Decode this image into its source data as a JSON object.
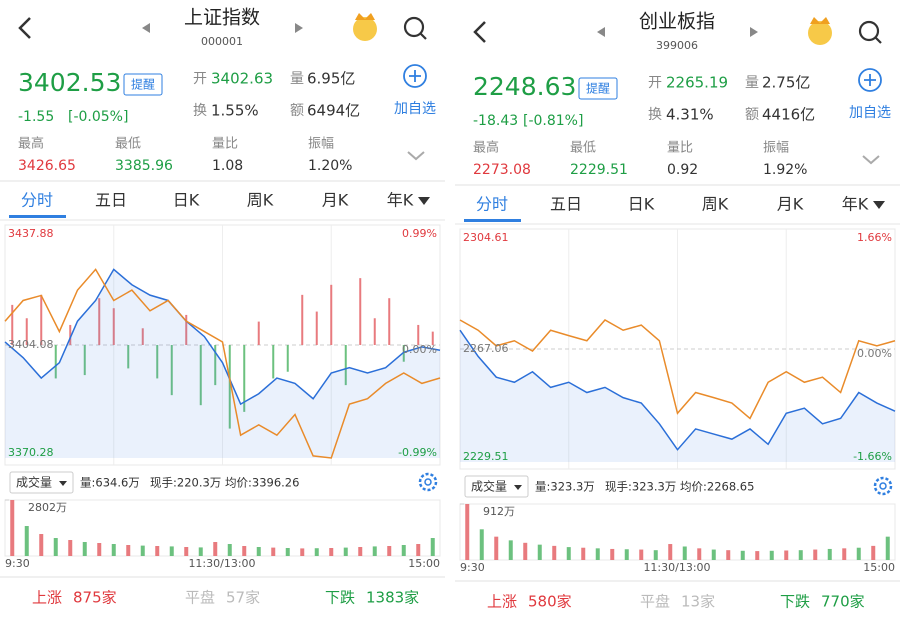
{
  "panels": [
    {
      "title": "上证指数",
      "code": "000001",
      "price": "3402.53",
      "alert_btn": "提醒",
      "change": "-1.55",
      "change_pct": "[-0.05%]",
      "open_label": "开",
      "open": "3402.63",
      "vol_label": "量",
      "vol": "6.95亿",
      "turnover_label": "换",
      "turnover": "1.55%",
      "amount_label": "额",
      "amount": "6494亿",
      "add_label": "加自选",
      "stats": [
        {
          "label": "最高",
          "value": "3426.65"
        },
        {
          "label": "最低",
          "value": "3385.96"
        },
        {
          "label": "量比",
          "value": "1.08"
        },
        {
          "label": "振幅",
          "value": "1.20%"
        }
      ],
      "tabs": [
        "分时",
        "五日",
        "日K",
        "周K",
        "月K",
        "年K"
      ],
      "chart": {
        "ylim": [
          3370.28,
          3437.88
        ],
        "prev_close": 3404.08,
        "top_pct": "0.99%",
        "mid_pct": "0.00%",
        "bottom_pct": "-0.99%",
        "price_line": [
          3405.0,
          3400.3,
          3394.2,
          3398.8,
          3411.2,
          3417.4,
          3426.7,
          3422.1,
          3419.0,
          3417.4,
          3411.2,
          3406.6,
          3398.8,
          3386.4,
          3389.5,
          3394.2,
          3392.6,
          3388.0,
          3395.7,
          3397.3,
          3395.7,
          3397.3,
          3401.9,
          3403.5,
          3402.5
        ],
        "orange_line": [
          3411.2,
          3417.4,
          3418.9,
          3408.1,
          3420.5,
          3426.7,
          3417.4,
          3420.5,
          3414.3,
          3417.4,
          3411.2,
          3408.1,
          3405.0,
          3377.1,
          3380.2,
          3377.1,
          3383.3,
          3370.9,
          3370.3,
          3386.4,
          3388.0,
          3392.6,
          3395.7,
          3392.6,
          3394.2
        ],
        "bars": [
          12,
          8,
          15,
          -10,
          6,
          -9,
          14,
          11,
          -7,
          5,
          -10,
          -15,
          9,
          -18,
          -12,
          -25,
          -20,
          7,
          -10,
          -8,
          15,
          10,
          18,
          -12,
          20,
          8,
          14,
          -5,
          6,
          4
        ]
      },
      "vol_selector": "成交量",
      "vol_info": [
        "量:634.6万",
        "现手:220.3万",
        "均价:3396.26"
      ],
      "vol_max_label": "2802万",
      "vol_max": 2802,
      "volume": [
        2802,
        1500,
        1100,
        900,
        800,
        700,
        650,
        600,
        550,
        520,
        500,
        480,
        450,
        430,
        700,
        600,
        500,
        450,
        420,
        400,
        380,
        390,
        400,
        420,
        450,
        480,
        500,
        550,
        600,
        900
      ],
      "times": [
        "9:30",
        "11:30/13:00",
        "15:00"
      ],
      "breadth": [
        {
          "label": "上涨",
          "value": "875家"
        },
        {
          "label": "平盘",
          "value": "57家"
        },
        {
          "label": "下跌",
          "value": "1383家"
        }
      ]
    },
    {
      "title": "创业板指",
      "code": "399006",
      "price": "2248.63",
      "alert_btn": "提醒",
      "change": "-18.43",
      "change_pct": "[-0.81%]",
      "open_label": "开",
      "open": "2265.19",
      "vol_label": "量",
      "vol": "2.75亿",
      "turnover_label": "换",
      "turnover": "4.31%",
      "amount_label": "额",
      "amount": "4416亿",
      "add_label": "加自选",
      "stats": [
        {
          "label": "最高",
          "value": "2273.08"
        },
        {
          "label": "最低",
          "value": "2229.51"
        },
        {
          "label": "量比",
          "value": "0.92"
        },
        {
          "label": "振幅",
          "value": "1.92%"
        }
      ],
      "tabs": [
        "分时",
        "五日",
        "日K",
        "周K",
        "月K",
        "年K"
      ],
      "chart": {
        "ylim": [
          2229.51,
          2304.61
        ],
        "prev_close": 2267.06,
        "top_pct": "1.66%",
        "mid_pct": "0.00%",
        "bottom_pct": "-1.66%",
        "price_line": [
          2273.3,
          2264.6,
          2257.7,
          2256.0,
          2259.5,
          2254.3,
          2256.0,
          2252.6,
          2254.3,
          2250.9,
          2249.1,
          2242.2,
          2233.6,
          2240.5,
          2238.8,
          2237.1,
          2240.5,
          2235.4,
          2245.7,
          2247.4,
          2242.2,
          2244.0,
          2252.6,
          2249.1,
          2246.4
        ],
        "orange_line": [
          2276.7,
          2273.3,
          2268.1,
          2269.8,
          2266.4,
          2273.3,
          2271.5,
          2269.8,
          2276.7,
          2273.3,
          2275.0,
          2269.8,
          2245.7,
          2252.6,
          2250.9,
          2249.1,
          2244.0,
          2256.0,
          2259.5,
          2256.0,
          2257.7,
          2252.6,
          2269.8,
          2268.1,
          2269.8
        ]
      },
      "vol_selector": "成交量",
      "vol_info": [
        "量:323.3万",
        "现手:323.3万",
        "均价:2268.65"
      ],
      "vol_max_label": "912万",
      "vol_max": 912,
      "volume": [
        912,
        500,
        380,
        320,
        280,
        250,
        230,
        210,
        200,
        190,
        180,
        175,
        170,
        160,
        260,
        220,
        190,
        170,
        160,
        150,
        145,
        150,
        155,
        160,
        170,
        180,
        190,
        200,
        230,
        380
      ],
      "times": [
        "9:30",
        "11:30/13:00",
        "15:00"
      ],
      "breadth": [
        {
          "label": "上涨",
          "value": "580家"
        },
        {
          "label": "平盘",
          "value": "13家"
        },
        {
          "label": "下跌",
          "value": "770家"
        }
      ]
    }
  ]
}
